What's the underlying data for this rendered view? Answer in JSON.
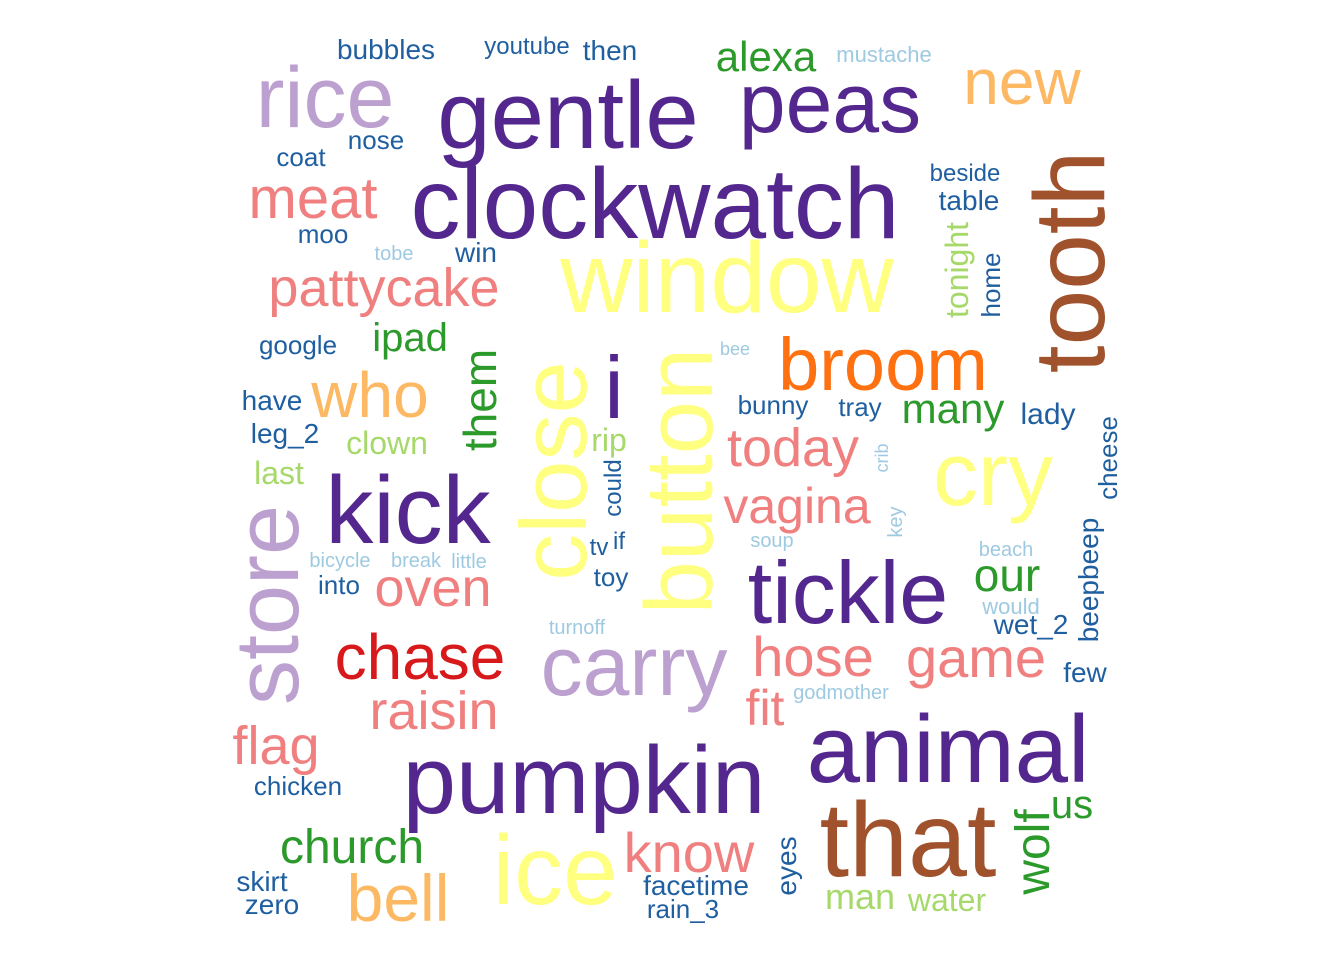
{
  "palette": {
    "purple": "#54278f",
    "lavender": "#bca0d0",
    "yellow": "#ffff80",
    "brown": "#a0522d",
    "orange": "#ff7010",
    "light_orange": "#fdb863",
    "pink": "#f08080",
    "red": "#d7191c",
    "green": "#2b9a2b",
    "light_green": "#a6d96a",
    "blue": "#1f5fa0",
    "light_blue": "#9ecae1"
  },
  "words": [
    {
      "text": "gentle",
      "color": "purple"
    },
    {
      "text": "peas",
      "color": "purple"
    },
    {
      "text": "clockwatch",
      "color": "purple"
    },
    {
      "text": "kick",
      "color": "purple"
    },
    {
      "text": "tickle",
      "color": "purple"
    },
    {
      "text": "pumpkin",
      "color": "purple"
    },
    {
      "text": "animal",
      "color": "purple"
    },
    {
      "text": "i",
      "color": "purple"
    },
    {
      "text": "rice",
      "color": "lavender"
    },
    {
      "text": "store",
      "color": "lavender"
    },
    {
      "text": "carry",
      "color": "lavender"
    },
    {
      "text": "window",
      "color": "yellow"
    },
    {
      "text": "close",
      "color": "yellow"
    },
    {
      "text": "button",
      "color": "yellow"
    },
    {
      "text": "cry",
      "color": "yellow"
    },
    {
      "text": "ice",
      "color": "yellow"
    },
    {
      "text": "tooth",
      "color": "brown"
    },
    {
      "text": "that",
      "color": "brown"
    },
    {
      "text": "broom",
      "color": "orange"
    },
    {
      "text": "new",
      "color": "light_orange"
    },
    {
      "text": "who",
      "color": "light_orange"
    },
    {
      "text": "bell",
      "color": "light_orange"
    },
    {
      "text": "meat",
      "color": "pink"
    },
    {
      "text": "pattycake",
      "color": "pink"
    },
    {
      "text": "today",
      "color": "pink"
    },
    {
      "text": "vagina",
      "color": "pink"
    },
    {
      "text": "oven",
      "color": "pink"
    },
    {
      "text": "hose",
      "color": "pink"
    },
    {
      "text": "game",
      "color": "pink"
    },
    {
      "text": "raisin",
      "color": "pink"
    },
    {
      "text": "fit",
      "color": "pink"
    },
    {
      "text": "flag",
      "color": "pink"
    },
    {
      "text": "know",
      "color": "pink"
    },
    {
      "text": "chase",
      "color": "red"
    },
    {
      "text": "alexa",
      "color": "green"
    },
    {
      "text": "ipad",
      "color": "green"
    },
    {
      "text": "them",
      "color": "green"
    },
    {
      "text": "many",
      "color": "green"
    },
    {
      "text": "our",
      "color": "green"
    },
    {
      "text": "church",
      "color": "green"
    },
    {
      "text": "wolf",
      "color": "green"
    },
    {
      "text": "us",
      "color": "green"
    },
    {
      "text": "tonight",
      "color": "light_green"
    },
    {
      "text": "clown",
      "color": "light_green"
    },
    {
      "text": "last",
      "color": "light_green"
    },
    {
      "text": "rip",
      "color": "light_green"
    },
    {
      "text": "man",
      "color": "light_green"
    },
    {
      "text": "water",
      "color": "light_green"
    },
    {
      "text": "bubbles",
      "color": "blue"
    },
    {
      "text": "youtube",
      "color": "blue"
    },
    {
      "text": "then",
      "color": "blue"
    },
    {
      "text": "nose",
      "color": "blue"
    },
    {
      "text": "coat",
      "color": "blue"
    },
    {
      "text": "moo",
      "color": "blue"
    },
    {
      "text": "win",
      "color": "blue"
    },
    {
      "text": "google",
      "color": "blue"
    },
    {
      "text": "have",
      "color": "blue"
    },
    {
      "text": "leg_2",
      "color": "blue"
    },
    {
      "text": "into",
      "color": "blue"
    },
    {
      "text": "chicken",
      "color": "blue"
    },
    {
      "text": "skirt",
      "color": "blue"
    },
    {
      "text": "zero",
      "color": "blue"
    },
    {
      "text": "beside",
      "color": "blue"
    },
    {
      "text": "table",
      "color": "blue"
    },
    {
      "text": "home",
      "color": "blue"
    },
    {
      "text": "bunny",
      "color": "blue"
    },
    {
      "text": "tray",
      "color": "blue"
    },
    {
      "text": "lady",
      "color": "blue"
    },
    {
      "text": "cheese",
      "color": "blue"
    },
    {
      "text": "could",
      "color": "blue"
    },
    {
      "text": "tv",
      "color": "blue"
    },
    {
      "text": "if",
      "color": "blue"
    },
    {
      "text": "toy",
      "color": "blue"
    },
    {
      "text": "beepbeep",
      "color": "blue"
    },
    {
      "text": "wet_2",
      "color": "blue"
    },
    {
      "text": "few",
      "color": "blue"
    },
    {
      "text": "eyes",
      "color": "blue"
    },
    {
      "text": "facetime",
      "color": "blue"
    },
    {
      "text": "rain_3",
      "color": "blue"
    },
    {
      "text": "mustache",
      "color": "light_blue"
    },
    {
      "text": "tobe",
      "color": "light_blue"
    },
    {
      "text": "bee",
      "color": "light_blue"
    },
    {
      "text": "crib",
      "color": "light_blue"
    },
    {
      "text": "key",
      "color": "light_blue"
    },
    {
      "text": "soup",
      "color": "light_blue"
    },
    {
      "text": "bicycle",
      "color": "light_blue"
    },
    {
      "text": "break",
      "color": "light_blue"
    },
    {
      "text": "little",
      "color": "light_blue"
    },
    {
      "text": "beach",
      "color": "light_blue"
    },
    {
      "text": "would",
      "color": "light_blue"
    },
    {
      "text": "turnoff",
      "color": "light_blue"
    },
    {
      "text": "godmother",
      "color": "light_blue"
    }
  ]
}
